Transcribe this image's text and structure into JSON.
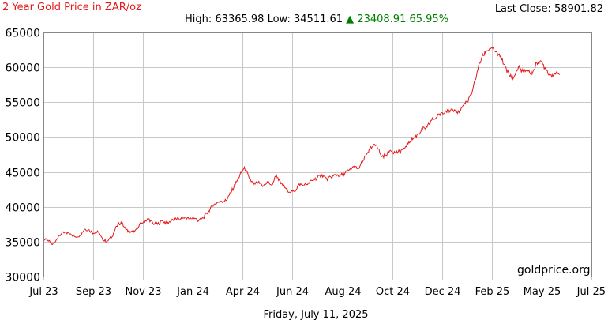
{
  "header": {
    "title": "2 Year Gold Price in ZAR/oz",
    "last_close_label": "Last Close:",
    "last_close_value": "58901.82",
    "high_label": "High:",
    "high_value": "63365.98",
    "low_label": "Low:",
    "low_value": "34511.61",
    "change_arrow": "▲",
    "change_value": "23408.91",
    "change_pct": "65.95%"
  },
  "footer": {
    "date": "Friday, July 11, 2025",
    "watermark": "goldprice.org"
  },
  "colors": {
    "line": "#e31a1c",
    "up": "#008000",
    "grid": "#c8c8c8"
  },
  "chart_data": {
    "type": "line",
    "ylim": [
      30000,
      65000
    ],
    "yticks": [
      30000,
      35000,
      40000,
      45000,
      50000,
      55000,
      60000,
      65000
    ],
    "ytick_labels": [
      "30000",
      "35000",
      "40000",
      "45000",
      "50000",
      "55000",
      "60000",
      "65000"
    ],
    "xlim": [
      0,
      24
    ],
    "xtick_labels": [
      "Jul 23",
      "Sep 23",
      "Nov 23",
      "Jan 24",
      "Apr 24",
      "Jun 24",
      "Aug 24",
      "Oct 24",
      "Dec 24",
      "Feb 25",
      "May 25",
      "Jul 25"
    ],
    "grid": true,
    "series": [
      {
        "values": [
          [
            0.0,
            35300
          ],
          [
            0.2,
            35200
          ],
          [
            0.4,
            34600
          ],
          [
            0.6,
            35400
          ],
          [
            0.8,
            36200
          ],
          [
            1.0,
            36300
          ],
          [
            1.2,
            36100
          ],
          [
            1.4,
            35700
          ],
          [
            1.6,
            35900
          ],
          [
            1.8,
            36800
          ],
          [
            2.0,
            36700
          ],
          [
            2.2,
            36200
          ],
          [
            2.4,
            36400
          ],
          [
            2.6,
            35200
          ],
          [
            2.8,
            35100
          ],
          [
            3.0,
            35700
          ],
          [
            3.2,
            37200
          ],
          [
            3.4,
            37800
          ],
          [
            3.6,
            36800
          ],
          [
            3.8,
            36300
          ],
          [
            4.0,
            36500
          ],
          [
            4.2,
            37400
          ],
          [
            4.4,
            37900
          ],
          [
            4.6,
            38300
          ],
          [
            4.8,
            37600
          ],
          [
            5.0,
            37500
          ],
          [
            5.2,
            38000
          ],
          [
            5.4,
            37600
          ],
          [
            5.6,
            38000
          ],
          [
            5.8,
            38300
          ],
          [
            6.0,
            38200
          ],
          [
            6.2,
            38500
          ],
          [
            6.4,
            38300
          ],
          [
            6.6,
            38400
          ],
          [
            6.8,
            38000
          ],
          [
            7.0,
            38400
          ],
          [
            7.2,
            39200
          ],
          [
            7.4,
            40100
          ],
          [
            7.6,
            40600
          ],
          [
            7.8,
            40800
          ],
          [
            8.0,
            40900
          ],
          [
            8.2,
            42000
          ],
          [
            8.4,
            43200
          ],
          [
            8.6,
            44500
          ],
          [
            8.8,
            45700
          ],
          [
            9.0,
            44200
          ],
          [
            9.2,
            43200
          ],
          [
            9.4,
            43500
          ],
          [
            9.6,
            42900
          ],
          [
            9.8,
            43600
          ],
          [
            10.0,
            43100
          ],
          [
            10.2,
            44600
          ],
          [
            10.4,
            43300
          ],
          [
            10.6,
            42700
          ],
          [
            10.8,
            42100
          ],
          [
            11.0,
            42200
          ],
          [
            11.2,
            43300
          ],
          [
            11.4,
            43000
          ],
          [
            11.6,
            43400
          ],
          [
            11.8,
            43800
          ],
          [
            12.0,
            44200
          ],
          [
            12.2,
            44600
          ],
          [
            12.4,
            44000
          ],
          [
            12.6,
            44200
          ],
          [
            12.8,
            44600
          ],
          [
            13.0,
            44500
          ],
          [
            13.2,
            44800
          ],
          [
            13.4,
            45300
          ],
          [
            13.6,
            45700
          ],
          [
            13.8,
            45500
          ],
          [
            14.0,
            46600
          ],
          [
            14.2,
            47800
          ],
          [
            14.4,
            48600
          ],
          [
            14.6,
            48900
          ],
          [
            14.8,
            47200
          ],
          [
            15.0,
            47400
          ],
          [
            15.2,
            48100
          ],
          [
            15.4,
            47800
          ],
          [
            15.6,
            47900
          ],
          [
            15.8,
            48400
          ],
          [
            16.0,
            49300
          ],
          [
            16.2,
            49800
          ],
          [
            16.4,
            50400
          ],
          [
            16.6,
            51100
          ],
          [
            16.8,
            51400
          ],
          [
            17.0,
            52400
          ],
          [
            17.2,
            52800
          ],
          [
            17.4,
            53400
          ],
          [
            17.6,
            53800
          ],
          [
            17.8,
            53600
          ],
          [
            18.0,
            53900
          ],
          [
            18.2,
            53500
          ],
          [
            18.4,
            54600
          ],
          [
            18.6,
            55100
          ],
          [
            18.8,
            56800
          ],
          [
            19.0,
            59400
          ],
          [
            19.2,
            61400
          ],
          [
            19.4,
            62400
          ],
          [
            19.6,
            62700
          ],
          [
            19.8,
            62200
          ],
          [
            20.0,
            61500
          ],
          [
            20.2,
            60400
          ],
          [
            20.4,
            58800
          ],
          [
            20.6,
            58600
          ],
          [
            20.8,
            60000
          ],
          [
            21.0,
            59400
          ],
          [
            21.2,
            59600
          ],
          [
            21.4,
            59000
          ],
          [
            21.6,
            60700
          ],
          [
            21.8,
            60900
          ],
          [
            22.0,
            59700
          ],
          [
            22.2,
            58900
          ],
          [
            22.4,
            59100
          ],
          [
            22.6,
            58901.82
          ]
        ]
      }
    ]
  }
}
